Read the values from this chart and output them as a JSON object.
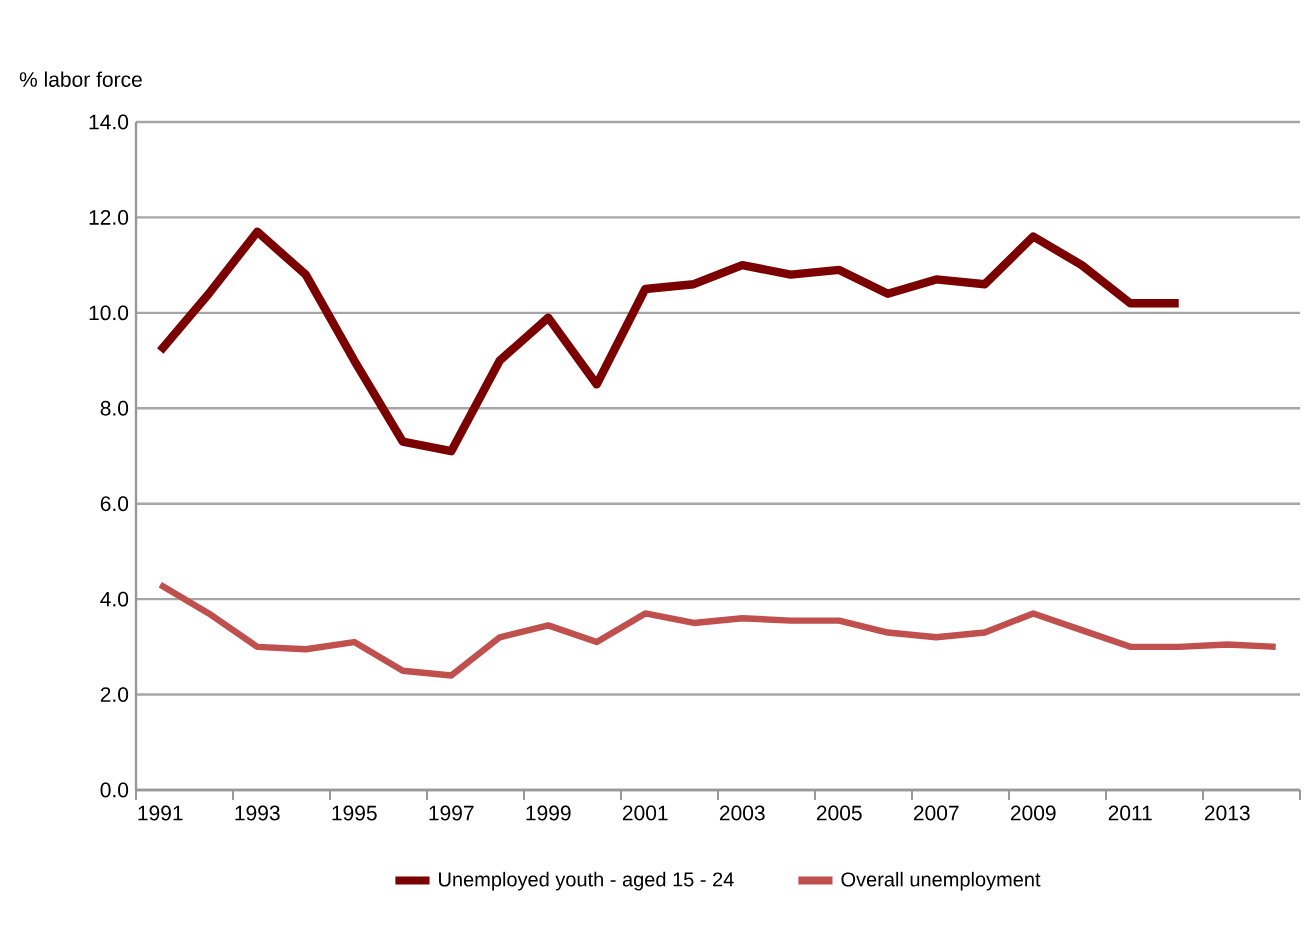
{
  "chart_data": {
    "type": "line",
    "ylabel": "% labor force",
    "categories": [
      "1991",
      null,
      "1993",
      null,
      "1995",
      null,
      "1997",
      null,
      "1999",
      null,
      "2001",
      null,
      "2003",
      null,
      "2005",
      null,
      "2007",
      null,
      "2009",
      null,
      "2011",
      null,
      "2013",
      null
    ],
    "series": [
      {
        "name": "Unemployed youth - aged 15 - 24",
        "color": "#7b0000",
        "values": [
          9.2,
          10.4,
          11.7,
          10.8,
          9.0,
          7.3,
          7.1,
          9.0,
          9.9,
          8.5,
          10.5,
          10.6,
          11.0,
          10.8,
          10.9,
          10.4,
          10.7,
          10.6,
          11.6,
          11.0,
          10.2,
          10.2,
          null,
          null
        ]
      },
      {
        "name": "Overall unemployment",
        "color": "#c0504d",
        "values": [
          4.3,
          3.7,
          3.0,
          2.95,
          3.1,
          2.5,
          2.4,
          3.2,
          3.45,
          3.1,
          3.7,
          3.5,
          3.6,
          3.55,
          3.55,
          3.3,
          3.2,
          3.3,
          3.7,
          3.35,
          3.0,
          3.0,
          3.05,
          3.0
        ]
      }
    ],
    "ylim": [
      0,
      14
    ],
    "yticks": [
      {
        "value": 0,
        "label": "0.0"
      },
      {
        "value": 2,
        "label": "2.0"
      },
      {
        "value": 4,
        "label": "4.0"
      },
      {
        "value": 6,
        "label": "6.0"
      },
      {
        "value": 8,
        "label": "8.0"
      },
      {
        "value": 10,
        "label": "10.0"
      },
      {
        "value": 12,
        "label": "12.0"
      },
      {
        "value": 14,
        "label": "14.0"
      }
    ],
    "grid": "y",
    "legend": "bottom",
    "marker": "none",
    "line_style": "solid"
  }
}
